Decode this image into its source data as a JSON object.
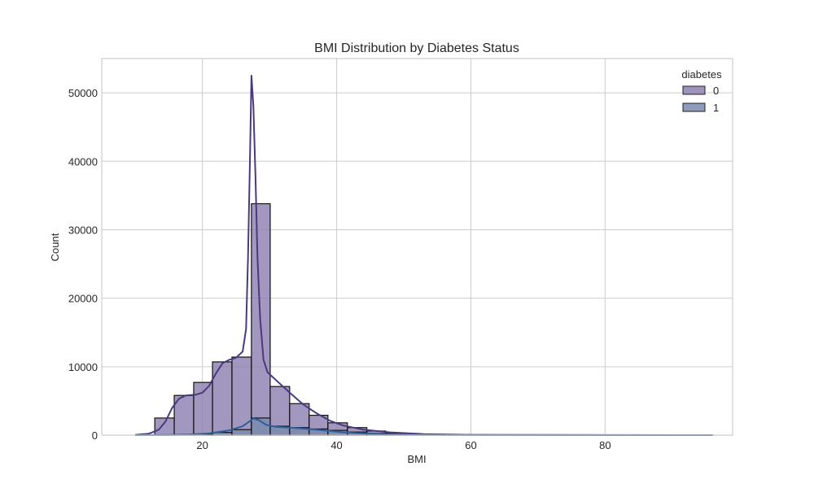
{
  "chart_data": {
    "type": "histogram",
    "title": "BMI Distribution by Diabetes Status",
    "xlabel": "BMI",
    "ylabel": "Count",
    "xlim": [
      5,
      99
    ],
    "ylim": [
      0,
      55000
    ],
    "xticks": [
      20,
      40,
      60,
      80
    ],
    "yticks": [
      0,
      10000,
      20000,
      30000,
      40000,
      50000
    ],
    "grid": true,
    "legend": {
      "title": "diabetes",
      "position": "top-right"
    },
    "bin_edges": [
      12.9,
      15.8,
      18.7,
      21.5,
      24.4,
      27.3,
      30.1,
      33.0,
      35.9,
      38.7,
      41.6,
      44.5,
      47.3,
      50.2,
      53.1,
      55.9,
      58.8,
      61.7,
      64.5,
      67.4,
      70.3,
      73.1,
      76.0,
      78.9,
      81.7,
      84.6,
      87.5,
      90.3,
      93.2,
      96.1
    ],
    "series": [
      {
        "name": "0",
        "color": "#8d80b0",
        "line_color": "#49397f",
        "counts": [
          2500,
          5800,
          7700,
          10700,
          11400,
          33800,
          7100,
          4600,
          2900,
          1800,
          1100,
          600,
          300,
          150,
          80,
          40,
          25,
          15,
          10,
          8,
          5,
          4,
          3,
          2,
          2,
          1,
          1,
          1,
          1
        ],
        "kde": [
          [
            10,
            50
          ],
          [
            12,
            200
          ],
          [
            13.5,
            800
          ],
          [
            14.5,
            2000
          ],
          [
            15.5,
            4000
          ],
          [
            16.5,
            5300
          ],
          [
            17.5,
            5800
          ],
          [
            19,
            5900
          ],
          [
            20,
            6200
          ],
          [
            21,
            7200
          ],
          [
            22,
            9000
          ],
          [
            23,
            10500
          ],
          [
            24,
            11000
          ],
          [
            25,
            11300
          ],
          [
            26,
            12200
          ],
          [
            26.5,
            15500
          ],
          [
            26.8,
            26000
          ],
          [
            27.1,
            41000
          ],
          [
            27.3,
            52500
          ],
          [
            27.6,
            48000
          ],
          [
            27.9,
            38000
          ],
          [
            28.2,
            26000
          ],
          [
            28.6,
            17000
          ],
          [
            29.1,
            11000
          ],
          [
            29.7,
            9200
          ],
          [
            31,
            8000
          ],
          [
            33,
            6200
          ],
          [
            35,
            4500
          ],
          [
            37,
            3200
          ],
          [
            39,
            2100
          ],
          [
            41,
            1400
          ],
          [
            44,
            800
          ],
          [
            48,
            400
          ],
          [
            53,
            150
          ],
          [
            60,
            50
          ],
          [
            70,
            20
          ],
          [
            80,
            10
          ],
          [
            90,
            5
          ],
          [
            96,
            2
          ]
        ]
      },
      {
        "name": "1",
        "color": "#7a8aae",
        "line_color": "#2f5f9a",
        "counts": [
          20,
          50,
          150,
          400,
          800,
          2500,
          1300,
          1100,
          900,
          700,
          450,
          250,
          130,
          70,
          40,
          20,
          12,
          8,
          5,
          3,
          2,
          1,
          1,
          1,
          1,
          0,
          0,
          0,
          0
        ],
        "kde": [
          [
            10,
            0
          ],
          [
            15,
            30
          ],
          [
            18,
            100
          ],
          [
            21,
            250
          ],
          [
            24,
            700
          ],
          [
            26,
            1300
          ],
          [
            27,
            2000
          ],
          [
            27.6,
            2450
          ],
          [
            28.4,
            2200
          ],
          [
            29.5,
            1500
          ],
          [
            31,
            1200
          ],
          [
            33,
            1100
          ],
          [
            35,
            950
          ],
          [
            37,
            800
          ],
          [
            39,
            600
          ],
          [
            41,
            420
          ],
          [
            44,
            250
          ],
          [
            48,
            130
          ],
          [
            53,
            60
          ],
          [
            60,
            25
          ],
          [
            70,
            10
          ],
          [
            80,
            5
          ],
          [
            96,
            1
          ]
        ]
      }
    ]
  }
}
